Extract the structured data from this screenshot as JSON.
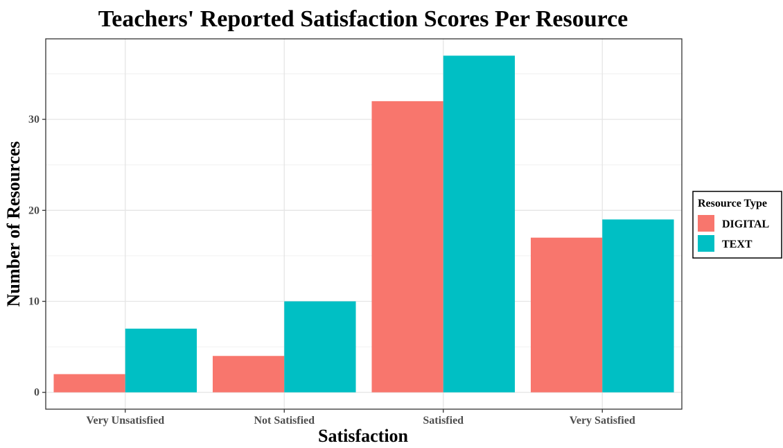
{
  "chart_data": {
    "type": "bar",
    "title": "Teachers' Reported Satisfaction Scores Per Resource",
    "xlabel": "Satisfaction",
    "ylabel": "Number of Resources",
    "categories": [
      "Very Unsatisfied",
      "Not Satisfied",
      "Satisfied",
      "Very Satisfied"
    ],
    "series": [
      {
        "name": "DIGITAL",
        "values": [
          2,
          4,
          32,
          17
        ],
        "color": "#F8766D"
      },
      {
        "name": "TEXT",
        "values": [
          7,
          10,
          37,
          19
        ],
        "color": "#00BFC4"
      }
    ],
    "yticks": [
      0,
      10,
      20,
      30
    ],
    "ylim": [
      -1.85,
      38.85
    ],
    "grid": true,
    "legend": {
      "title": "Resource Type",
      "position": "right"
    }
  }
}
